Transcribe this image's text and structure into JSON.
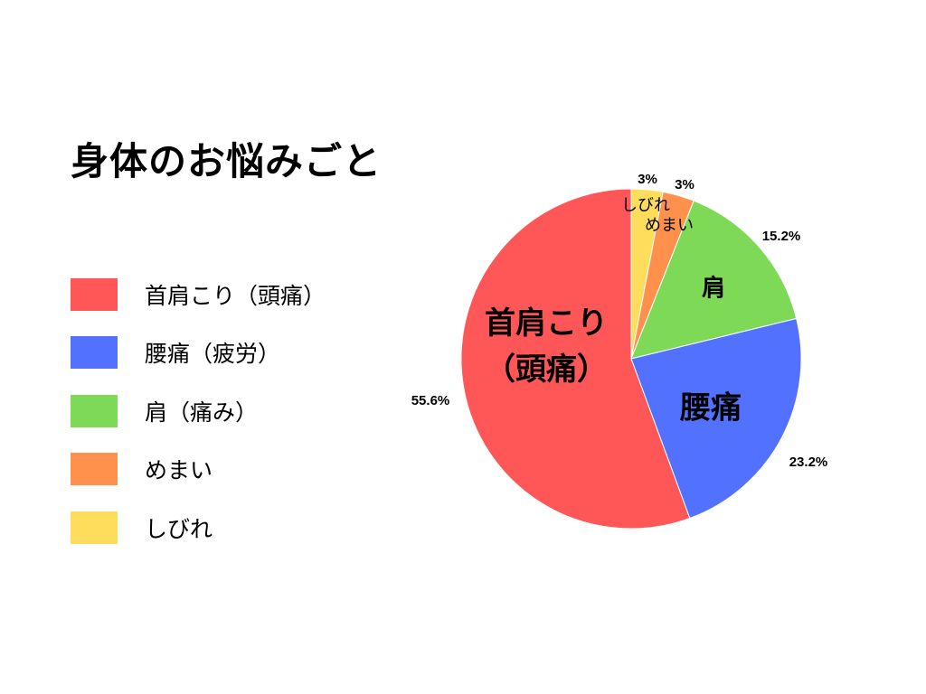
{
  "chart_data": {
    "type": "pie",
    "title": "身体のお悩みごと",
    "legend_position": "left",
    "start_angle_deg": 0,
    "direction": "clockwise",
    "slices": [
      {
        "legend_label": "しびれ",
        "slice_label": [
          "しびれ"
        ],
        "value": 3,
        "percent_label": "3%",
        "color": "#ffdd5c"
      },
      {
        "legend_label": "めまい",
        "slice_label": [
          "めまい"
        ],
        "value": 3,
        "percent_label": "3%",
        "color": "#ff914d"
      },
      {
        "legend_label": "肩（痛み）",
        "slice_label": [
          "肩"
        ],
        "value": 15.2,
        "percent_label": "15.2%",
        "color": "#7ed957"
      },
      {
        "legend_label": "腰痛（疲労）",
        "slice_label": [
          "腰痛"
        ],
        "value": 23.2,
        "percent_label": "23.2%",
        "color": "#5271ff"
      },
      {
        "legend_label": "首肩こり（頭痛）",
        "slice_label": [
          "首肩こり",
          "（頭痛）"
        ],
        "value": 55.6,
        "percent_label": "55.6%",
        "color": "#ff5757"
      }
    ],
    "legend_order": [
      "首肩こり（頭痛）",
      "腰痛（疲労）",
      "肩（痛み）",
      "めまい",
      "しびれ"
    ]
  }
}
